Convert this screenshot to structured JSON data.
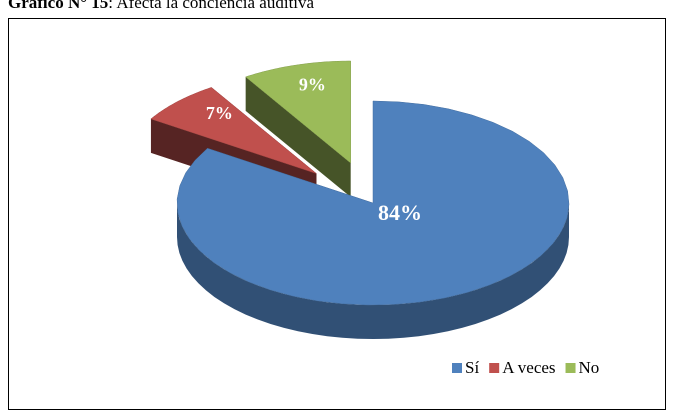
{
  "chart_data": {
    "type": "pie3d",
    "title_parts": [
      "Gráfico N° 15",
      ": Afecta la conciencia auditiva"
    ],
    "categories": [
      "Sí",
      "A veces",
      "No"
    ],
    "values": [
      84,
      7,
      9
    ],
    "value_labels": [
      "84%",
      "7%",
      "9%"
    ],
    "colors": [
      "#4f81bd",
      "#c0504d",
      "#9bbb59"
    ],
    "exploded": [
      false,
      true,
      true
    ],
    "legend": "lower right"
  }
}
